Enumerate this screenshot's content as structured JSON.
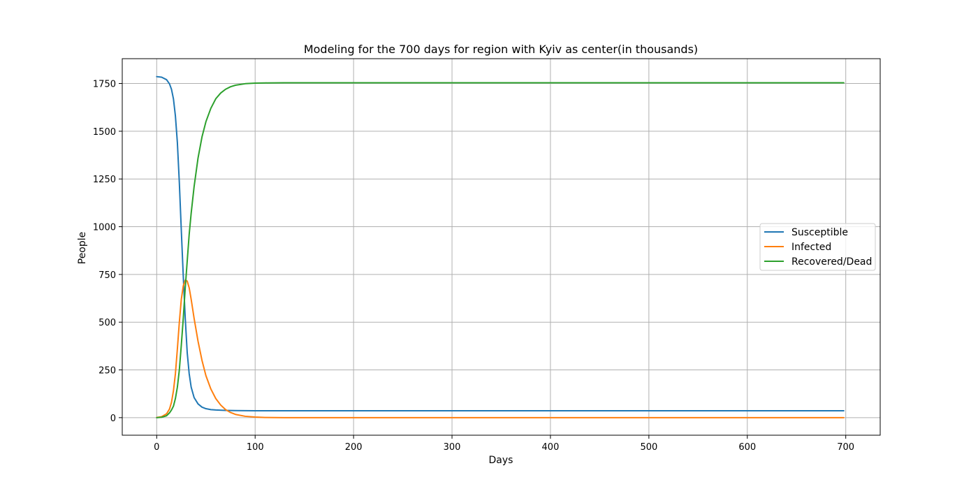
{
  "chart_data": {
    "type": "line",
    "title": "Modeling for the 700 days for region with Kyiv as center(in thousands)",
    "xlabel": "Days",
    "ylabel": "People",
    "xlim": [
      -35,
      735
    ],
    "ylim": [
      -92,
      1880
    ],
    "xticks": [
      0,
      100,
      200,
      300,
      400,
      500,
      600,
      700
    ],
    "yticks": [
      0,
      250,
      500,
      750,
      1000,
      1250,
      1500,
      1750
    ],
    "grid": true,
    "legend_position": "center-right",
    "series": [
      {
        "name": "Susceptible",
        "color": "#1f77b4",
        "x": [
          0,
          5,
          10,
          13,
          15,
          17,
          19,
          21,
          23,
          25,
          27,
          29,
          31,
          33,
          35,
          38,
          42,
          46,
          50,
          55,
          60,
          70,
          80,
          100,
          150,
          200,
          300,
          400,
          500,
          600,
          698
        ],
        "y": [
          1786,
          1783,
          1770,
          1748,
          1720,
          1670,
          1580,
          1440,
          1230,
          980,
          740,
          520,
          340,
          230,
          160,
          105,
          72,
          55,
          47,
          42,
          40,
          38,
          37,
          36,
          36,
          36,
          36,
          36,
          36,
          36,
          36
        ]
      },
      {
        "name": "Infected",
        "color": "#ff7f0e",
        "x": [
          0,
          5,
          10,
          13,
          15,
          17,
          19,
          21,
          23,
          25,
          27,
          29,
          31,
          33,
          35,
          38,
          42,
          46,
          50,
          55,
          60,
          65,
          70,
          75,
          80,
          90,
          100,
          110,
          130,
          150,
          200,
          300,
          400,
          500,
          600,
          698
        ],
        "y": [
          1,
          5,
          20,
          45,
          80,
          140,
          230,
          360,
          500,
          620,
          690,
          720,
          715,
          680,
          620,
          520,
          400,
          300,
          220,
          150,
          100,
          66,
          42,
          27,
          17,
          7,
          3,
          1,
          0,
          0,
          0,
          0,
          0,
          0,
          0,
          0
        ]
      },
      {
        "name": "Recovered/Dead",
        "color": "#2ca02c",
        "x": [
          0,
          5,
          10,
          13,
          15,
          17,
          19,
          21,
          23,
          25,
          27,
          29,
          31,
          33,
          35,
          38,
          42,
          46,
          50,
          55,
          60,
          65,
          70,
          75,
          80,
          90,
          100,
          110,
          130,
          150,
          200,
          300,
          400,
          500,
          600,
          698
        ],
        "y": [
          0,
          2,
          10,
          25,
          40,
          60,
          100,
          160,
          250,
          380,
          520,
          680,
          820,
          960,
          1070,
          1210,
          1360,
          1470,
          1550,
          1620,
          1670,
          1700,
          1720,
          1733,
          1741,
          1749,
          1752,
          1753,
          1754,
          1754,
          1754,
          1754,
          1754,
          1754,
          1754,
          1754
        ]
      }
    ]
  }
}
